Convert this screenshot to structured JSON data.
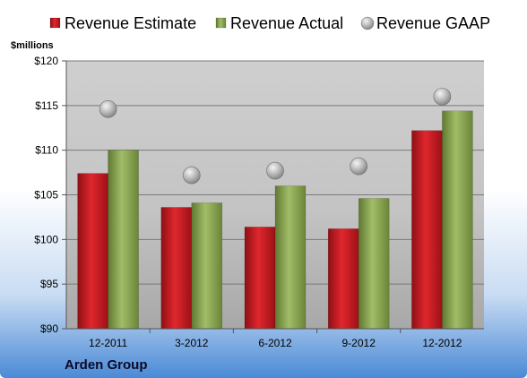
{
  "chart_data": {
    "type": "bar",
    "categories": [
      "12-2011",
      "3-2012",
      "6-2012",
      "9-2012",
      "12-2012"
    ],
    "series": [
      {
        "name": "Revenue Estimate",
        "kind": "bar",
        "color": "#c0161c",
        "values": [
          107.4,
          103.6,
          101.4,
          101.2,
          112.2
        ]
      },
      {
        "name": "Revenue Actual",
        "kind": "bar",
        "color": "#8aa352",
        "values": [
          110.0,
          104.1,
          106.0,
          104.6,
          114.4
        ]
      },
      {
        "name": "Revenue GAAP",
        "kind": "marker",
        "color": "#b0b0b0",
        "values": [
          114.6,
          107.2,
          107.7,
          108.2,
          116.0
        ]
      }
    ],
    "ylabel": "$millions",
    "ylim": [
      90,
      120
    ],
    "yticks": [
      "$90",
      "$95",
      "$100",
      "$105",
      "$110",
      "$115",
      "$120"
    ],
    "grid": true,
    "legend_position": "top",
    "footer": "Arden Group"
  }
}
